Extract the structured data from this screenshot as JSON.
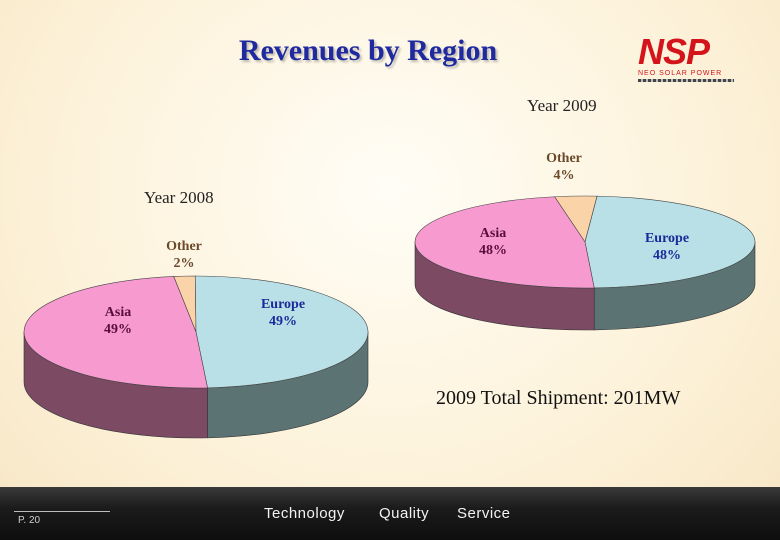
{
  "slide": {
    "title": "Revenues by Region",
    "page_number": "P. 20",
    "shipment_note": "2009 Total Shipment: 201MW"
  },
  "logo": {
    "mark": "NSP",
    "name": "NEO SOLAR POWER",
    "color": "#d4141b"
  },
  "footer": {
    "taglines": [
      "Technology",
      "Quality",
      "Service"
    ]
  },
  "colors": {
    "Europe": "#b8e0e6",
    "Asia": "#f79ad0",
    "Other": "#fbd3a8"
  },
  "chart_data": [
    {
      "type": "pie",
      "title": "Year 2008",
      "categories": [
        "Europe",
        "Asia",
        "Other"
      ],
      "values": [
        49,
        49,
        2
      ],
      "labels": [
        "Europe\n49%",
        "Asia\n49%",
        "Other\n2%"
      ]
    },
    {
      "type": "pie",
      "title": "Year 2009",
      "categories": [
        "Europe",
        "Asia",
        "Other"
      ],
      "values": [
        48,
        48,
        4
      ],
      "labels": [
        "Europe\n48%",
        "Asia\n48%",
        "Other\n4%"
      ]
    }
  ]
}
